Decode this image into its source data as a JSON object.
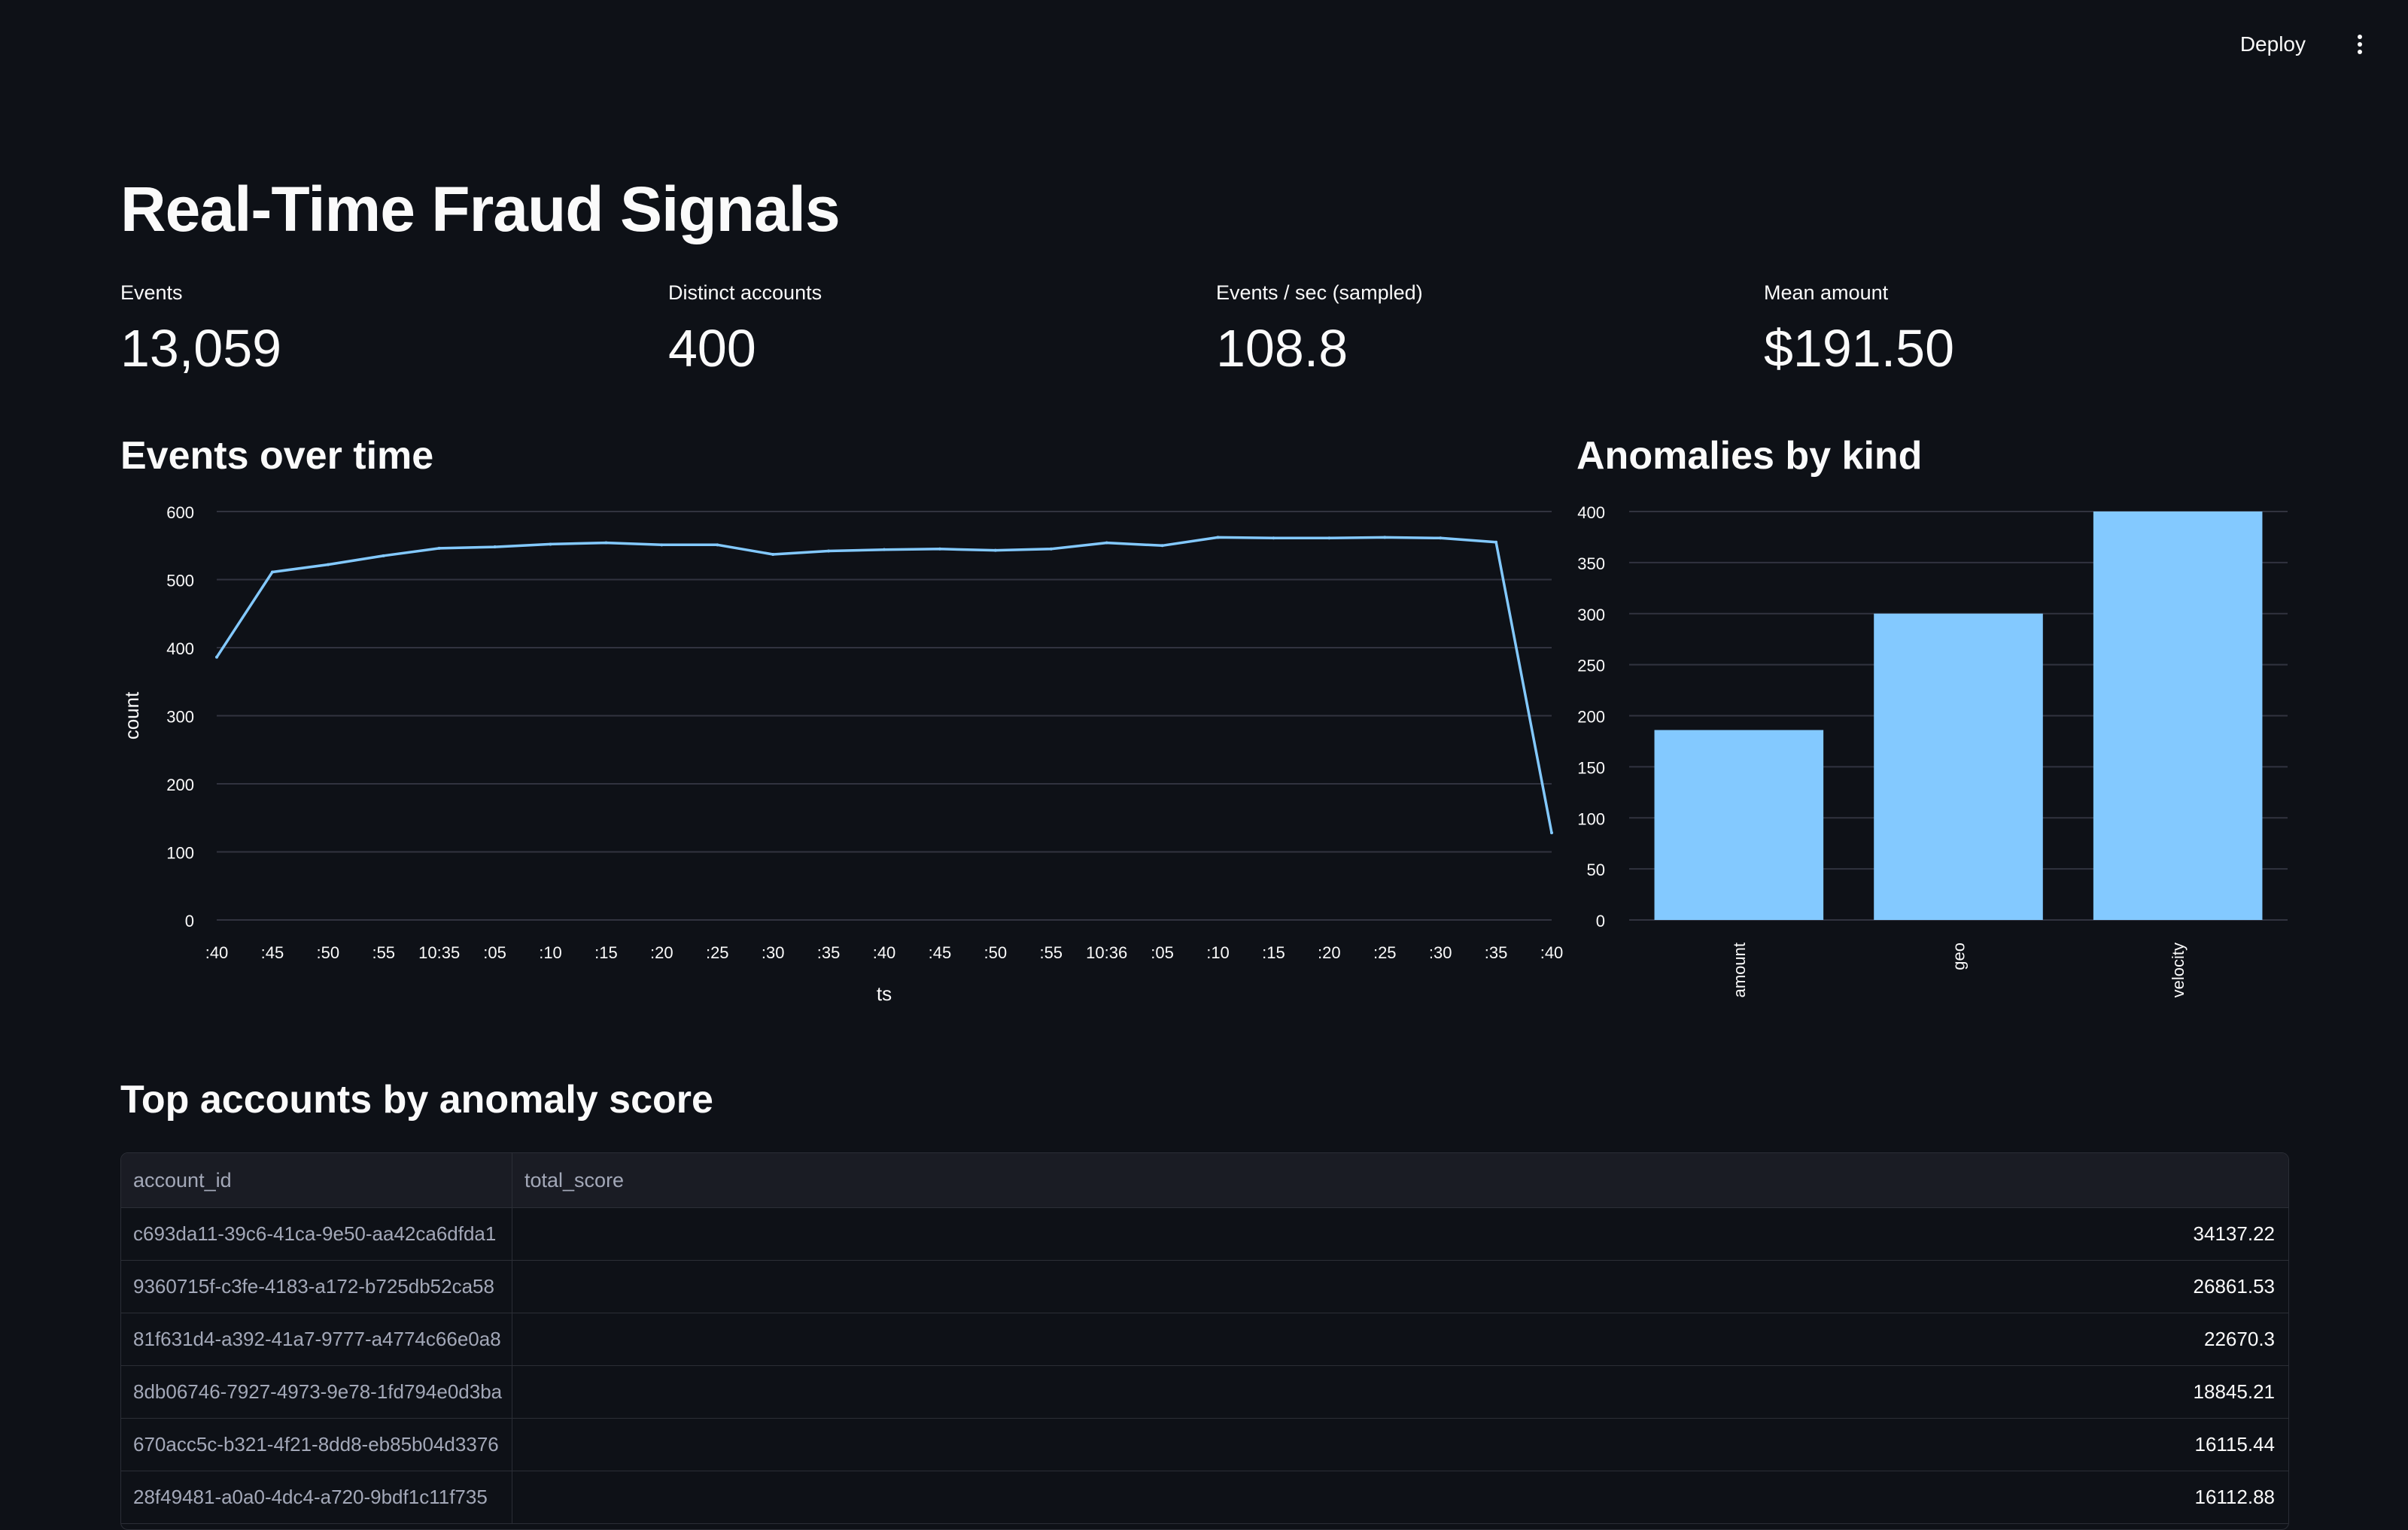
{
  "toolbar": {
    "deploy_label": "Deploy",
    "menu_icon": "kebab-menu-icon"
  },
  "page_title": "Real-Time Fraud Signals",
  "metrics": [
    {
      "label": "Events",
      "value": "13,059"
    },
    {
      "label": "Distinct accounts",
      "value": "400"
    },
    {
      "label": "Events / sec (sampled)",
      "value": "108.8"
    },
    {
      "label": "Mean amount",
      "value": "$191.50"
    }
  ],
  "sections": {
    "events_over_time": "Events over time",
    "anomalies_by_kind": "Anomalies by kind",
    "top_accounts": "Top accounts by anomaly score"
  },
  "colors": {
    "background": "#0e1117",
    "series": "#83c9ff",
    "grid": "#31333f"
  },
  "chart_data": [
    {
      "type": "line",
      "xlabel": "ts",
      "ylabel": "count",
      "ylim": [
        0,
        600
      ],
      "yticks": [
        "0",
        "100",
        "200",
        "300",
        "400",
        "500",
        "600"
      ],
      "xtick_labels": [
        ":40",
        ":45",
        ":50",
        ":55",
        "10:35",
        ":05",
        ":10",
        ":15",
        ":20",
        ":25",
        ":30",
        ":35",
        ":40",
        ":45",
        ":50",
        ":55",
        "10:36",
        ":05",
        ":10",
        ":15",
        ":20",
        ":25",
        ":30",
        ":35",
        ":40"
      ],
      "values": [
        386,
        511,
        522,
        535,
        546,
        548,
        552,
        554,
        551,
        551,
        537,
        542,
        544,
        545,
        543,
        545,
        554,
        550,
        562,
        561,
        561,
        562,
        561,
        555,
        128
      ],
      "grid": true,
      "series": [
        {
          "color": "#83c9ff"
        }
      ]
    },
    {
      "type": "bar",
      "categories": [
        "amount",
        "geo",
        "velocity"
      ],
      "values": [
        186,
        300,
        401
      ],
      "ylim": [
        0,
        400
      ],
      "yticks": [
        "0",
        "50",
        "100",
        "150",
        "200",
        "250",
        "300",
        "350",
        "400"
      ],
      "grid": true,
      "series": [
        {
          "color": "#83c9ff"
        }
      ]
    }
  ],
  "table": {
    "columns": [
      "account_id",
      "total_score"
    ],
    "rows": [
      [
        "c693da11-39c6-41ca-9e50-aa42ca6dfda1",
        "34137.22"
      ],
      [
        "9360715f-c3fe-4183-a172-b725db52ca58",
        "26861.53"
      ],
      [
        "81f631d4-a392-41a7-9777-a4774c66e0a8",
        "22670.3"
      ],
      [
        "8db06746-7927-4973-9e78-1fd794e0d3ba",
        "18845.21"
      ],
      [
        "670acc5c-b321-4f21-8dd8-eb85b04d3376",
        "16115.44"
      ],
      [
        "28f49481-a0a0-4dc4-a720-9bdf1c11f735",
        "16112.88"
      ]
    ]
  }
}
